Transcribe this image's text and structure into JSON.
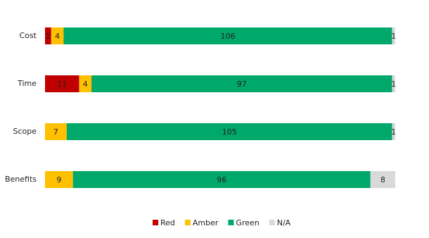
{
  "chart_data": {
    "type": "stacked-bar-horizontal",
    "categories": [
      "Cost",
      "Time",
      "Scope",
      "Benefits"
    ],
    "series": [
      {
        "name": "Red",
        "color": "#c00000",
        "values": [
          2,
          11,
          null,
          null
        ]
      },
      {
        "name": "Amber",
        "color": "#ffc000",
        "values": [
          4,
          4,
          7,
          9
        ]
      },
      {
        "name": "Green",
        "color": "#00a86b",
        "values": [
          106,
          97,
          105,
          96
        ]
      },
      {
        "name": "N/A",
        "color": "#d9d9d9",
        "values": [
          1,
          1,
          1,
          8
        ]
      }
    ],
    "xlim": [
      0,
      113
    ],
    "legend": "bottom"
  }
}
